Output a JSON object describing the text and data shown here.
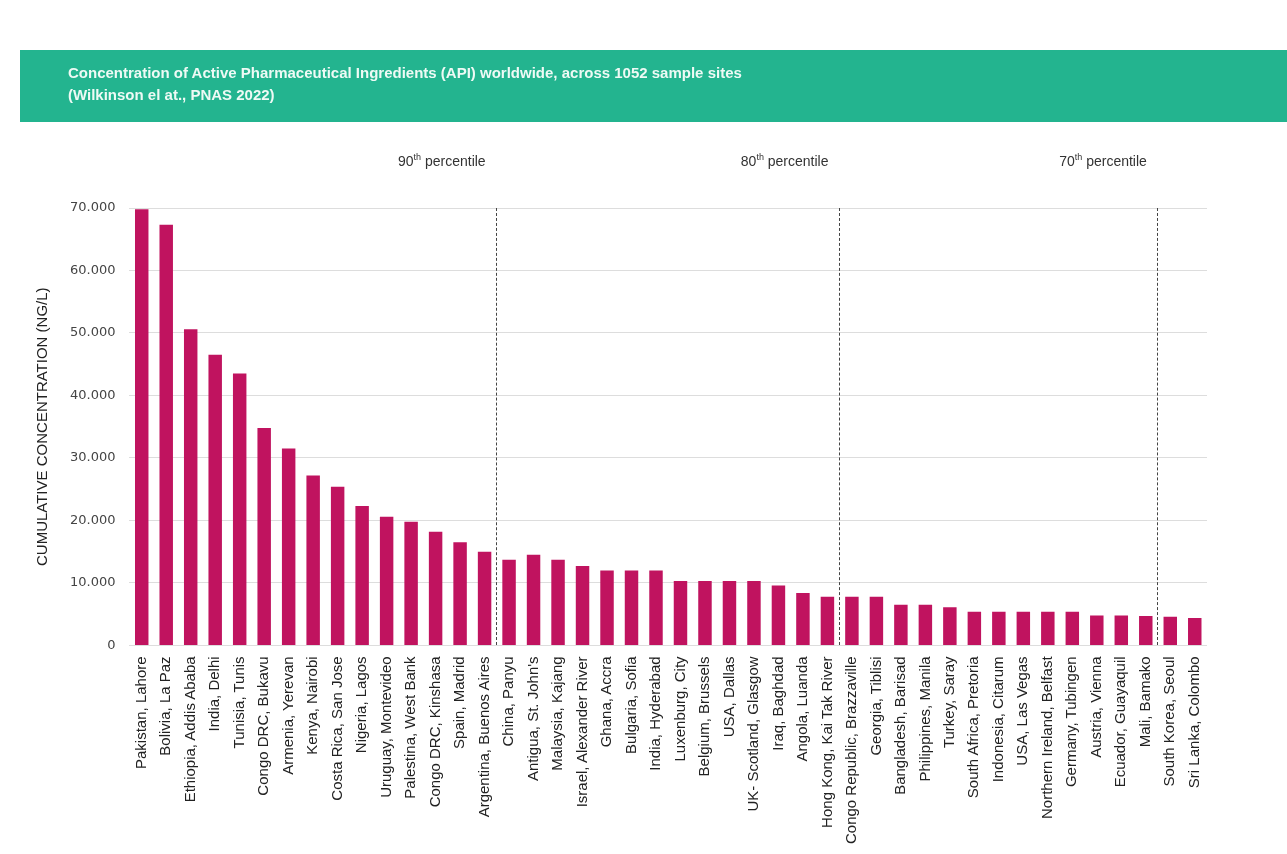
{
  "chart_data": {
    "type": "bar",
    "title": "Concentration of Active Pharmaceutical Ingredients (API) worldwide, across 1052 sample sites",
    "subtitle": "(Wilkinson el at., PNAS 2022)",
    "ylabel": "CUMULATIVE CONCENTRATION (NG/L)",
    "categories": [
      "Pakistan, Lahore",
      "Bolivia, La Paz",
      "Ethiopia, Addis Ababa",
      "India, Delhi",
      "Tunisia, Tunis",
      "Congo DRC, Bukavu",
      "Armenia, Yerevan",
      "Kenya, Nairobi",
      "Costa Rica, San Jose",
      "Nigeria, Lagos",
      "Uruguay, Montevideo",
      "Palestina, West Bank",
      "Congo DRC, Kinshasa",
      "Spain, Madrid",
      "Argentina, Buenos Aires",
      "China, Panyu",
      "Antigua, St. John's",
      "Malaysia, Kajang",
      "Israel, Alexander River",
      "Ghana, Accra",
      "Bulgaria, Sofia",
      "India, Hyderabad",
      "Luxenburg, City",
      "Belgium, Brussels",
      "USA, Dallas",
      "UK- Scotland, Glasgow",
      "Iraq, Baghdad",
      "Angola, Luanda",
      "Hong Kong, Kai Tak River",
      "Congo Republic, Brazzaville",
      "Georgia, Tiblisi",
      "Bangladesh, Barisad",
      "Philippines, Manila",
      "Turkey, Saray",
      "South Africa, Pretoria",
      "Indonesia, Citarum",
      "USA, Las Vegas",
      "Northern Ireland, Belfast",
      "Germany, Tubingen",
      "Austria, Vienna",
      "Ecuador, Guayaquil",
      "Mali, Bamako",
      "South Korea, Seoul",
      "Sri Lanka, Colombo"
    ],
    "values": [
      69800,
      67300,
      50600,
      46500,
      43500,
      34800,
      31500,
      27200,
      25400,
      22300,
      20600,
      19800,
      18200,
      16500,
      15000,
      13700,
      14500,
      13700,
      12700,
      12000,
      12000,
      12000,
      10300,
      10300,
      10300,
      10300,
      9600,
      8400,
      7800,
      7800,
      7800,
      6500,
      6500,
      6100,
      5400,
      5400,
      5400,
      5400,
      5400,
      4800,
      4800,
      4700,
      4600,
      4400
    ],
    "color": "#c0135f",
    "ylim": [
      0,
      70000
    ],
    "yticks": [
      0,
      {
        "value": 10000,
        "label": "10.000"
      },
      {
        "value": 20000,
        "label": "20.000"
      },
      {
        "value": 30000,
        "label": "30.000"
      },
      {
        "value": 40000,
        "label": "40.000"
      },
      {
        "value": 50000,
        "label": "50.000"
      },
      {
        "value": 60000,
        "label": "60.000"
      },
      {
        "value": 70000,
        "label": "70.000"
      }
    ],
    "annotations": [
      "90$^{th}$ percentile",
      "80$^{th}$ percentile",
      "70$^{th}$ percentile"
    ],
    "grid": "y",
    "legend": false
  }
}
